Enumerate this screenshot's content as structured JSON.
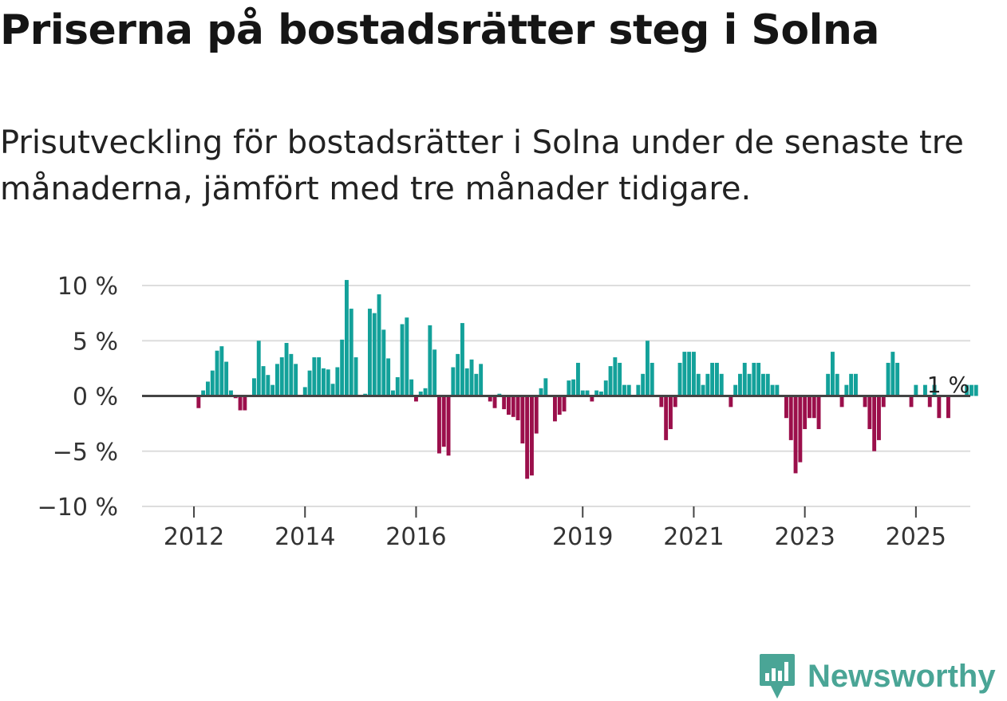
{
  "title": "Priserna på bostadsrätter steg i Solna",
  "subtitle": "Prisutveckling för bostadsrätter i Solna under de senaste tre månaderna, jämfört med tre månader tidigare.",
  "logo": {
    "text": "Newsworthy",
    "icon": "bar-chart-pin-icon",
    "color": "#4aa596"
  },
  "chart_data": {
    "type": "bar",
    "title": "Priserna på bostadsrätter steg i Solna",
    "xlabel": "",
    "ylabel": "",
    "ylim": [
      -10,
      10
    ],
    "grid": true,
    "colors": {
      "positive": "#13a19a",
      "negative": "#9b0f4b",
      "zero_line": "#444444",
      "grid": "#dddddd"
    },
    "y_ticks": [
      {
        "value": 10,
        "label": "10 %"
      },
      {
        "value": 5,
        "label": "5 %"
      },
      {
        "value": 0,
        "label": "0 %"
      },
      {
        "value": -5,
        "label": "−5 %"
      },
      {
        "value": -10,
        "label": "−10 %"
      }
    ],
    "x_ticks": [
      {
        "index": 7,
        "label": "2012"
      },
      {
        "index": 31,
        "label": "2014"
      },
      {
        "index": 55,
        "label": "2016"
      },
      {
        "index": 91,
        "label": "2019"
      },
      {
        "index": 115,
        "label": "2021"
      },
      {
        "index": 139,
        "label": "2023"
      },
      {
        "index": 163,
        "label": "2025"
      }
    ],
    "annotation": {
      "text": "1 %",
      "index": 170
    },
    "period_start": "2011-06",
    "values": [
      0,
      0,
      0,
      0,
      0,
      0,
      0,
      0,
      -1.1,
      0.5,
      1.3,
      2.3,
      4.1,
      4.5,
      3.1,
      0.5,
      -0.2,
      -1.3,
      -1.3,
      0,
      1.6,
      5.0,
      2.7,
      1.9,
      1.0,
      2.9,
      3.5,
      4.8,
      3.8,
      2.9,
      0.1,
      0.8,
      2.3,
      3.5,
      3.5,
      2.5,
      2.4,
      1.1,
      2.6,
      5.1,
      10.5,
      7.9,
      3.5,
      0,
      0.2,
      7.9,
      7.5,
      9.2,
      6.0,
      3.4,
      0.5,
      1.7,
      6.5,
      7.1,
      1.5,
      -0.5,
      0.4,
      0.7,
      6.4,
      4.2,
      -5.2,
      -4.6,
      -5.4,
      2.6,
      3.8,
      6.6,
      2.5,
      3.3,
      2.0,
      2.9,
      0,
      -0.5,
      -1.1,
      0.2,
      -1.2,
      -1.7,
      -1.9,
      -2.2,
      -4.3,
      -7.5,
      -7.2,
      -3.4,
      0.7,
      1.6,
      0,
      -2.3,
      -1.7,
      -1.4,
      1.4,
      1.5,
      3.0,
      0.5,
      0.5,
      -0.5,
      0.5,
      0.4,
      1.4,
      2.7,
      3.5,
      3.0,
      1.0,
      1.0,
      0,
      1.0,
      2.0,
      5.0,
      3.0,
      0,
      -1.0,
      -4.0,
      -3.0,
      -1.0,
      3.0,
      4.0,
      4.0,
      4.0,
      2.0,
      1.0,
      2.0,
      3.0,
      3.0,
      2.0,
      0,
      -1.0,
      1.0,
      2.0,
      3.0,
      2.0,
      3.0,
      3.0,
      2.0,
      2.0,
      1.0,
      1.0,
      0,
      -2.0,
      -4.0,
      -7.0,
      -6.0,
      -3.0,
      -2.0,
      -2.0,
      -3.0,
      0,
      2.0,
      4.0,
      2.0,
      -1.0,
      1.0,
      2.0,
      2.0,
      0,
      -1.0,
      -3.0,
      -5.0,
      -4.0,
      -1.0,
      3.0,
      4.0,
      3.0,
      0,
      0,
      -1.0,
      1.0,
      0,
      1.0,
      -1.0,
      1.0,
      -2.0,
      0,
      -2.0,
      0,
      0,
      0,
      1.0,
      1.0,
      1.0
    ]
  }
}
